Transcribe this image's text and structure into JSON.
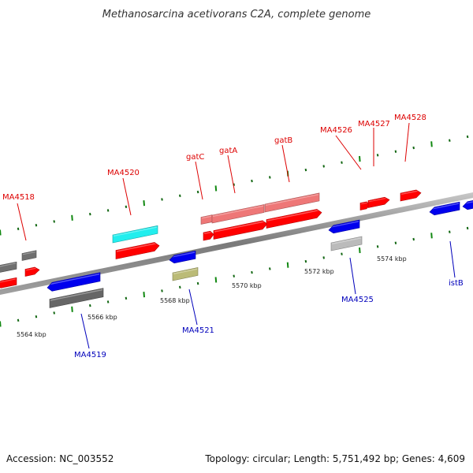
{
  "title": "Methanosarcina acetivorans C2A, complete genome",
  "footer": {
    "accession": "Accession: NC_003552",
    "summary": "Topology: circular; Length: 5,751,492 bp; Genes: 4,609"
  },
  "colors": {
    "forward_label": "#dd0000",
    "reverse_label": "#0000bb",
    "backbone": "#8a8a8a",
    "minor_tick": "#116611",
    "major_tick": "#118811"
  },
  "scale_labels": [
    "5564 kbp",
    "5566 kbp",
    "5568 kbp",
    "5570 kbp",
    "5572 kbp",
    "5574 kbp"
  ],
  "gene_labels_forward": [
    "MA4518",
    "MA4520",
    "gatC",
    "gatA",
    "gatB",
    "MA4526",
    "MA4527",
    "MA4528"
  ],
  "gene_labels_reverse": [
    "MA4519",
    "MA4521",
    "MA4525",
    "istB"
  ],
  "features": [
    {
      "strand": "reverse",
      "color": "#ff0000",
      "kind": "gene"
    },
    {
      "strand": "reverse",
      "color": "#707070",
      "kind": "gene"
    },
    {
      "strand": "forward",
      "color": "#ff0000",
      "kind": "gene"
    },
    {
      "strand": "forward",
      "color": "#707070",
      "kind": "gene"
    },
    {
      "strand": "reverse",
      "color": "#0000ee",
      "kind": "gene"
    },
    {
      "strand": "reverse",
      "color": "#666666",
      "kind": "cds"
    },
    {
      "strand": "forward",
      "color": "#ff0000",
      "kind": "gene"
    },
    {
      "strand": "forward",
      "color": "#22eeee",
      "kind": "cds"
    },
    {
      "strand": "reverse",
      "color": "#0000ee",
      "kind": "gene"
    },
    {
      "strand": "reverse",
      "color": "#bbbb77",
      "kind": "cds"
    },
    {
      "strand": "forward",
      "color": "#ff0000",
      "kind": "gene"
    },
    {
      "strand": "forward",
      "color": "#ee7777",
      "kind": "cds"
    },
    {
      "strand": "forward",
      "color": "#ff0000",
      "kind": "gene"
    },
    {
      "strand": "forward",
      "color": "#ee7777",
      "kind": "cds"
    },
    {
      "strand": "forward",
      "color": "#ff0000",
      "kind": "gene"
    },
    {
      "strand": "forward",
      "color": "#ee7777",
      "kind": "cds"
    },
    {
      "strand": "reverse",
      "color": "#0000ee",
      "kind": "gene"
    },
    {
      "strand": "reverse",
      "color": "#bbbbbb",
      "kind": "cds"
    },
    {
      "strand": "forward",
      "color": "#ff0000",
      "kind": "gene"
    },
    {
      "strand": "forward",
      "color": "#ff0000",
      "kind": "gene"
    },
    {
      "strand": "forward",
      "color": "#ff0000",
      "kind": "gene"
    },
    {
      "strand": "reverse",
      "color": "#0000ee",
      "kind": "gene"
    },
    {
      "strand": "reverse",
      "color": "#0000ee",
      "kind": "gene"
    }
  ]
}
